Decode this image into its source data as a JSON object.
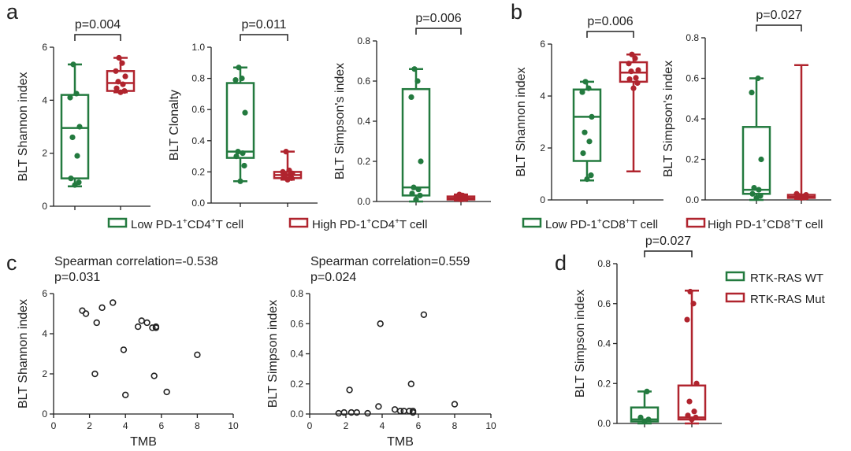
{
  "colors": {
    "low": "#237a3f",
    "high": "#b0242e",
    "axis": "#222222",
    "scatter": "#222222"
  },
  "legend_a": {
    "low": {
      "pre": "Low PD-1",
      "sup1": "+",
      "mid": "CD4",
      "sup2": "+",
      "post": "T cell"
    },
    "high": {
      "pre": "High PD-1",
      "sup1": "+",
      "mid": "CD4",
      "sup2": "+",
      "post": "T cell"
    }
  },
  "legend_b": {
    "low": {
      "pre": "Low PD-1",
      "sup1": "+",
      "mid": "CD8",
      "sup2": "+",
      "post": "T cell"
    },
    "high": {
      "pre": "High PD-1",
      "sup1": "+",
      "mid": "CD8",
      "sup2": "+",
      "post": "T cell"
    }
  },
  "legend_d": {
    "wt": "RTK-RAS WT",
    "mut": "RTK-RAS Mut"
  },
  "chart_data": [
    {
      "id": "a1",
      "panel_label": "a",
      "type": "box",
      "ylabel": "BLT Shannon index",
      "ylim": [
        0,
        6
      ],
      "yticks": [
        "0",
        "2",
        "4",
        "6"
      ],
      "pvalue": "p=0.004",
      "groups": [
        {
          "group": "low",
          "whisker": [
            0.75,
            5.35
          ],
          "q1": 1.05,
          "median": 2.95,
          "q3": 4.2,
          "points": [
            0.8,
            0.9,
            1.05,
            1.9,
            2.6,
            3.0,
            4.1,
            4.25,
            5.35
          ]
        },
        {
          "group": "high",
          "whisker": [
            4.3,
            5.6
          ],
          "q1": 4.35,
          "median": 4.65,
          "q3": 5.1,
          "points": [
            4.3,
            4.35,
            4.45,
            4.6,
            4.7,
            4.9,
            5.1,
            5.4,
            5.6
          ]
        }
      ]
    },
    {
      "id": "a2",
      "type": "box",
      "ylabel": "BLT Clonalty",
      "ylim": [
        0,
        1.0
      ],
      "yticks": [
        "0.0",
        "0.2",
        "0.4",
        "0.6",
        "0.8",
        "1.0"
      ],
      "pvalue": "p=0.011",
      "groups": [
        {
          "group": "low",
          "whisker": [
            0.14,
            0.87
          ],
          "q1": 0.29,
          "median": 0.33,
          "q3": 0.77,
          "points": [
            0.14,
            0.24,
            0.3,
            0.32,
            0.33,
            0.58,
            0.79,
            0.8,
            0.87
          ]
        },
        {
          "group": "high",
          "whisker": [
            0.15,
            0.33
          ],
          "q1": 0.16,
          "median": 0.18,
          "q3": 0.2,
          "points": [
            0.15,
            0.16,
            0.17,
            0.18,
            0.18,
            0.19,
            0.2,
            0.21,
            0.33
          ]
        }
      ]
    },
    {
      "id": "a3",
      "type": "box",
      "ylabel": "BLT Simpson's index",
      "ylim": [
        0,
        0.8
      ],
      "yticks": [
        "0.0",
        "0.2",
        "0.4",
        "0.6",
        "0.8"
      ],
      "pvalue": "p=0.006",
      "groups": [
        {
          "group": "low",
          "whisker": [
            0.0,
            0.66
          ],
          "q1": 0.03,
          "median": 0.07,
          "q3": 0.56,
          "points": [
            0.01,
            0.03,
            0.04,
            0.06,
            0.07,
            0.2,
            0.52,
            0.6,
            0.66
          ]
        },
        {
          "group": "high",
          "whisker": [
            0.005,
            0.035
          ],
          "q1": 0.01,
          "median": 0.015,
          "q3": 0.025,
          "points": [
            0.01,
            0.012,
            0.015,
            0.018,
            0.02,
            0.022,
            0.025,
            0.03,
            0.035
          ]
        }
      ]
    },
    {
      "id": "b1",
      "panel_label": "b",
      "type": "box",
      "ylabel": "BLT Shannon index",
      "ylim": [
        0,
        6
      ],
      "yticks": [
        "0",
        "2",
        "4",
        "6"
      ],
      "pvalue": "p=0.006",
      "groups": [
        {
          "group": "low",
          "whisker": [
            0.75,
            4.55
          ],
          "q1": 1.5,
          "median": 3.2,
          "q3": 4.25,
          "points": [
            0.8,
            0.95,
            1.8,
            2.25,
            2.6,
            3.2,
            4.15,
            4.3,
            4.55
          ]
        },
        {
          "group": "high",
          "whisker": [
            1.1,
            5.6
          ],
          "q1": 4.55,
          "median": 4.9,
          "q3": 5.3,
          "points": [
            4.3,
            4.5,
            4.65,
            4.7,
            4.95,
            5.0,
            5.25,
            5.45,
            5.6
          ]
        }
      ]
    },
    {
      "id": "b2",
      "type": "box",
      "ylabel": "BLT Simpson's index",
      "ylim": [
        0,
        0.8
      ],
      "yticks": [
        "0.0",
        "0.2",
        "0.4",
        "0.6",
        "0.8"
      ],
      "pvalue": "p=0.027",
      "groups": [
        {
          "group": "low",
          "whisker": [
            0.0,
            0.6
          ],
          "q1": 0.03,
          "median": 0.05,
          "q3": 0.36,
          "points": [
            0.01,
            0.02,
            0.03,
            0.05,
            0.06,
            0.2,
            0.53,
            0.6
          ]
        },
        {
          "group": "high",
          "whisker": [
            0.005,
            0.665
          ],
          "q1": 0.01,
          "median": 0.015,
          "q3": 0.025,
          "points": [
            0.01,
            0.012,
            0.015,
            0.018,
            0.02,
            0.025,
            0.03
          ]
        }
      ]
    },
    {
      "id": "c1",
      "panel_label": "c",
      "type": "scatter",
      "xlabel": "TMB",
      "ylabel": "BLT Shannon index",
      "xlim": [
        0,
        10
      ],
      "ylim": [
        0,
        6
      ],
      "xticks": [
        "0",
        "2",
        "4",
        "6",
        "8",
        "10"
      ],
      "yticks": [
        "0",
        "2",
        "4",
        "6"
      ],
      "annotation": [
        "Spearman correlation=-0.538",
        "p=0.031"
      ],
      "x": [
        1.6,
        1.8,
        2.3,
        2.4,
        2.7,
        3.3,
        3.9,
        4.0,
        4.7,
        4.9,
        5.2,
        5.5,
        5.6,
        5.7,
        5.7,
        6.3,
        8.0
      ],
      "y": [
        5.15,
        5.0,
        2.0,
        4.55,
        5.3,
        5.55,
        3.2,
        0.95,
        4.35,
        4.65,
        4.55,
        4.3,
        1.9,
        4.3,
        4.35,
        1.1,
        2.95
      ]
    },
    {
      "id": "c2",
      "type": "scatter",
      "xlabel": "TMB",
      "ylabel": "BLT Simpson index",
      "xlim": [
        0,
        10
      ],
      "ylim": [
        0,
        0.8
      ],
      "xticks": [
        "0",
        "2",
        "4",
        "6",
        "8",
        "10"
      ],
      "yticks": [
        "0.0",
        "0.2",
        "0.4",
        "0.6",
        "0.8"
      ],
      "annotation": [
        "Spearman correlation=0.559",
        "p=0.024"
      ],
      "x": [
        1.6,
        1.9,
        2.2,
        2.3,
        2.6,
        3.2,
        3.8,
        3.9,
        4.7,
        5.0,
        5.2,
        5.5,
        5.6,
        5.7,
        5.7,
        6.3,
        8.0
      ],
      "y": [
        0.005,
        0.01,
        0.16,
        0.01,
        0.01,
        0.005,
        0.05,
        0.6,
        0.03,
        0.02,
        0.02,
        0.02,
        0.2,
        0.01,
        0.02,
        0.66,
        0.065
      ]
    },
    {
      "id": "d1",
      "panel_label": "d",
      "type": "box",
      "ylabel": "BLT Simpson index",
      "ylim": [
        0,
        0.8
      ],
      "yticks": [
        "0.0",
        "0.2",
        "0.4",
        "0.6",
        "0.8"
      ],
      "pvalue": "p=0.027",
      "groups": [
        {
          "group": "wt",
          "whisker": [
            0.0,
            0.16
          ],
          "q1": 0.01,
          "median": 0.02,
          "q3": 0.08,
          "points": [
            0.01,
            0.02,
            0.03,
            0.16
          ]
        },
        {
          "group": "mut",
          "whisker": [
            0.0,
            0.665
          ],
          "q1": 0.02,
          "median": 0.03,
          "q3": 0.19,
          "points": [
            0.02,
            0.03,
            0.04,
            0.06,
            0.11,
            0.2,
            0.52,
            0.6,
            0.66
          ]
        }
      ]
    }
  ]
}
